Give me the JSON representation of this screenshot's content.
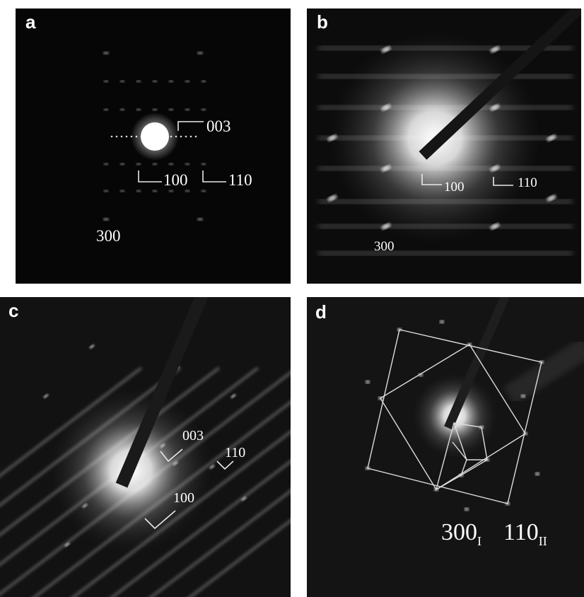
{
  "panels": [
    {
      "label": "a",
      "annotations": [
        "003",
        "100",
        "110",
        "300"
      ]
    },
    {
      "label": "b",
      "annotations": [
        "100",
        "110",
        "300"
      ]
    },
    {
      "label": "c",
      "annotations": [
        "003",
        "110",
        "100"
      ]
    },
    {
      "label": "d",
      "annotations": [
        {
          "text": "300",
          "sub": "I"
        },
        {
          "text": "110",
          "sub": "II"
        }
      ]
    }
  ]
}
